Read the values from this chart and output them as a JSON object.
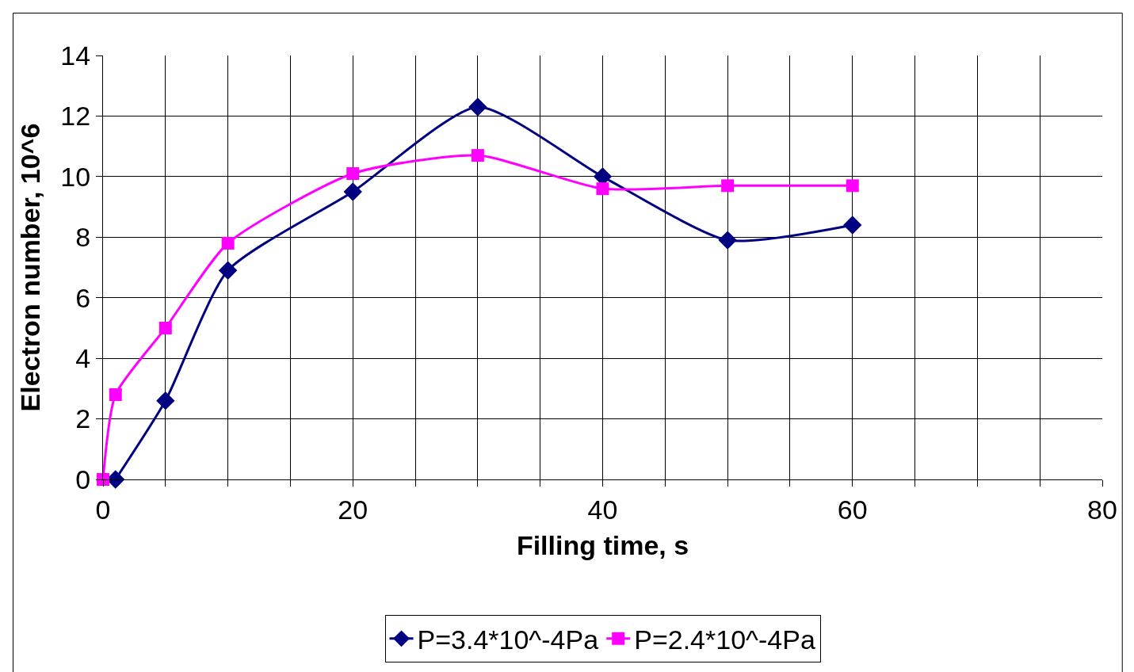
{
  "chart_data": {
    "type": "line",
    "xlabel": "Filling time, s",
    "ylabel": "Electron number, 10^6",
    "series": [
      {
        "name": "P=3.4*10^-4Pa",
        "color": "#000080",
        "marker": "diamond",
        "x": [
          1,
          5,
          10,
          20,
          30,
          40,
          50,
          60
        ],
        "values": [
          0,
          2.6,
          6.9,
          9.5,
          12.3,
          10.0,
          7.9,
          8.4
        ]
      },
      {
        "name": "P=2.4*10^-4Pa",
        "color": "#ff00ff",
        "marker": "square",
        "x": [
          0,
          1,
          5,
          10,
          20,
          30,
          40,
          50,
          60
        ],
        "values": [
          0,
          2.8,
          5.0,
          7.8,
          10.1,
          10.7,
          9.6,
          9.7,
          9.7
        ]
      }
    ],
    "xlim": [
      0,
      80
    ],
    "xticks": [
      0,
      {
        "value": 5,
        "label": null
      },
      {
        "value": 10,
        "label": null
      },
      {
        "value": 15,
        "label": null
      },
      20,
      {
        "value": 25,
        "label": null
      },
      {
        "value": 30,
        "label": null
      },
      {
        "value": 35,
        "label": null
      },
      40,
      {
        "value": 45,
        "label": null
      },
      {
        "value": 50,
        "label": null
      },
      {
        "value": 55,
        "label": null
      },
      60,
      {
        "value": 65,
        "label": null
      },
      {
        "value": 70,
        "label": null
      },
      {
        "value": 75,
        "label": null
      },
      80
    ],
    "ylim": [
      0,
      14
    ],
    "yticks": [
      0,
      2,
      4,
      6,
      8,
      10,
      12,
      14
    ],
    "grid": true,
    "legend": "bottom",
    "line_style": "solid"
  }
}
